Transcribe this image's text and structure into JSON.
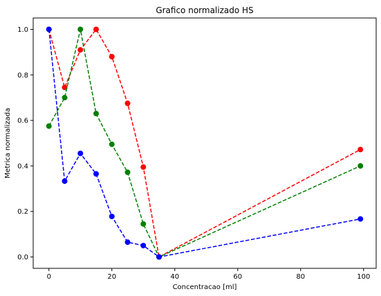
{
  "chart_data": {
    "type": "line",
    "title": "Grafico normalizado HS",
    "xlabel": "Concentracao [ml]",
    "ylabel": "Metrica normalizada",
    "xlim": [
      -5,
      104
    ],
    "ylim": [
      -0.05,
      1.05
    ],
    "xticks": [
      0,
      20,
      40,
      60,
      80,
      100
    ],
    "yticks": [
      0.0,
      0.2,
      0.4,
      0.6,
      0.8,
      1.0
    ],
    "grid": false,
    "x": [
      0,
      5,
      10,
      15,
      20,
      25,
      30,
      35,
      99
    ],
    "series": [
      {
        "color": "#ff0000",
        "values": [
          1.0,
          0.745,
          0.91,
          1.0,
          0.88,
          0.675,
          0.395,
          0.0,
          0.472
        ]
      },
      {
        "color": "#008000",
        "values": [
          0.575,
          0.7,
          1.0,
          0.63,
          0.495,
          0.372,
          0.145,
          0.0,
          0.4
        ]
      },
      {
        "color": "#0000ff",
        "values": [
          1.0,
          0.333,
          0.455,
          0.365,
          0.178,
          0.065,
          0.05,
          0.0,
          0.167
        ]
      }
    ]
  }
}
